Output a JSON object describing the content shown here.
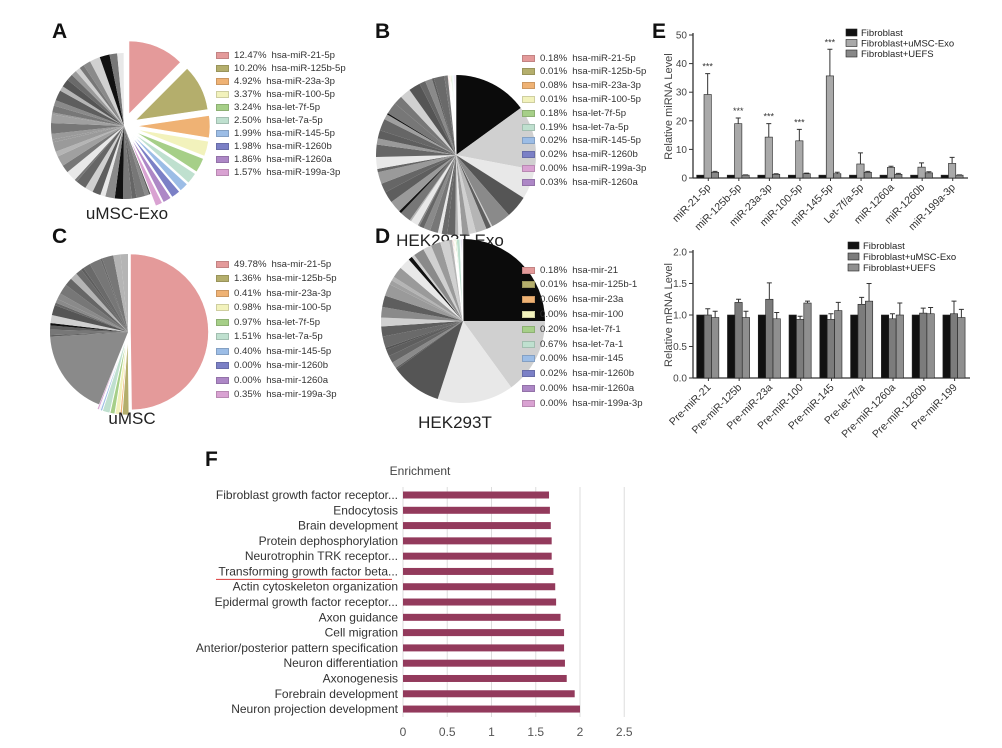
{
  "panel_letters": [
    "A",
    "B",
    "C",
    "D",
    "E",
    "F"
  ],
  "chart_data": [
    {
      "id": "A",
      "type": "pie",
      "title": "uMSC-Exo",
      "labeled_slices": [
        {
          "pct_label": "12.47%",
          "name": "hsa-miR-21-5p",
          "value": 12.47,
          "color": "#e49a9a"
        },
        {
          "pct_label": "10.20%",
          "name": "hsa-miR-125b-5p",
          "value": 10.2,
          "color": "#b4ae6c"
        },
        {
          "pct_label": "4.92%",
          "name": "hsa-miR-23a-3p",
          "value": 4.92,
          "color": "#efb274"
        },
        {
          "pct_label": "3.37%",
          "name": "hsa-miR-100-5p",
          "value": 3.37,
          "color": "#f2f2bc"
        },
        {
          "pct_label": "3.24%",
          "name": "hsa-let-7f-5p",
          "value": 3.24,
          "color": "#a6cf88"
        },
        {
          "pct_label": "2.50%",
          "name": "hsa-let-7a-5p",
          "value": 2.5,
          "color": "#bfe0cf"
        },
        {
          "pct_label": "1.99%",
          "name": "hsa-miR-145-5p",
          "value": 1.99,
          "color": "#9cbde6"
        },
        {
          "pct_label": "1.98%",
          "name": "hsa-miR-1260b",
          "value": 1.98,
          "color": "#7b80c6"
        },
        {
          "pct_label": "1.86%",
          "name": "hsa-miR-1260a",
          "value": 1.86,
          "color": "#ad87c6"
        },
        {
          "pct_label": "1.57%",
          "name": "hsa-miR-199a-3p",
          "value": 1.57,
          "color": "#d9a2d2"
        }
      ],
      "unlabeled_major_slices_pct": []
    },
    {
      "id": "B",
      "type": "pie",
      "title": "HEK293T-Exo",
      "labeled_slices": [
        {
          "pct_label": "0.18%",
          "name": "hsa-miR-21-5p",
          "value": 0.18,
          "color": "#e49a9a"
        },
        {
          "pct_label": "0.01%",
          "name": "hsa-miR-125b-5p",
          "value": 0.01,
          "color": "#b4ae6c"
        },
        {
          "pct_label": "0.08%",
          "name": "hsa-miR-23a-3p",
          "value": 0.08,
          "color": "#efb274"
        },
        {
          "pct_label": "0.01%",
          "name": "hsa-miR-100-5p",
          "value": 0.01,
          "color": "#f2f2bc"
        },
        {
          "pct_label": "0.18%",
          "name": "hsa-let-7f-5p",
          "value": 0.18,
          "color": "#a6cf88"
        },
        {
          "pct_label": "0.19%",
          "name": "hsa-let-7a-5p",
          "value": 0.19,
          "color": "#bfe0cf"
        },
        {
          "pct_label": "0.02%",
          "name": "hsa-miR-145-5p",
          "value": 0.02,
          "color": "#9cbde6"
        },
        {
          "pct_label": "0.02%",
          "name": "hsa-miR-1260b",
          "value": 0.02,
          "color": "#7b80c6"
        },
        {
          "pct_label": "0.00%",
          "name": "hsa-miR-199a-3p",
          "value": 0.0,
          "color": "#d9a2d2"
        },
        {
          "pct_label": "0.03%",
          "name": "hsa-miR-1260a",
          "value": 0.03,
          "color": "#ad87c6"
        }
      ],
      "unlabeled_major_slices_pct": [
        15,
        13,
        6,
        4.5,
        4
      ]
    },
    {
      "id": "C",
      "type": "pie",
      "title": "uMSC",
      "labeled_slices": [
        {
          "pct_label": "49.78%",
          "name": "hsa-mir-21-5p",
          "value": 49.78,
          "color": "#e49a9a"
        },
        {
          "pct_label": "1.36%",
          "name": "hsa-mir-125b-5p",
          "value": 1.36,
          "color": "#b4ae6c"
        },
        {
          "pct_label": "0.41%",
          "name": "hsa-mir-23a-3p",
          "value": 0.41,
          "color": "#efb274"
        },
        {
          "pct_label": "0.98%",
          "name": "hsa-mir-100-5p",
          "value": 0.98,
          "color": "#f2f2bc"
        },
        {
          "pct_label": "0.97%",
          "name": "hsa-let-7f-5p",
          "value": 0.97,
          "color": "#a6cf88"
        },
        {
          "pct_label": "1.51%",
          "name": "hsa-let-7a-5p",
          "value": 1.51,
          "color": "#bfe0cf"
        },
        {
          "pct_label": "0.40%",
          "name": "hsa-mir-145-5p",
          "value": 0.4,
          "color": "#9cbde6"
        },
        {
          "pct_label": "0.00%",
          "name": "hsa-mir-1260b",
          "value": 0.0,
          "color": "#7b80c6"
        },
        {
          "pct_label": "0.00%",
          "name": "hsa-mir-1260a",
          "value": 0.0,
          "color": "#ad87c6"
        },
        {
          "pct_label": "0.35%",
          "name": "hsa-mir-199a-3p",
          "value": 0.35,
          "color": "#d9a2d2"
        }
      ],
      "unlabeled_major_slices_pct": [
        18
      ]
    },
    {
      "id": "D",
      "type": "pie",
      "title": "HEK293T",
      "labeled_slices": [
        {
          "pct_label": "0.18%",
          "name": "hsa-mir-21",
          "value": 0.18,
          "color": "#e49a9a"
        },
        {
          "pct_label": "0.01%",
          "name": "hsa-mir-125b-1",
          "value": 0.01,
          "color": "#b4ae6c"
        },
        {
          "pct_label": "0.06%",
          "name": "hsa-mir-23a",
          "value": 0.06,
          "color": "#efb274"
        },
        {
          "pct_label": "0.00%",
          "name": "hsa-mir-100",
          "value": 0.0,
          "color": "#f2f2bc"
        },
        {
          "pct_label": "0.20%",
          "name": "hsa-let-7f-1",
          "value": 0.2,
          "color": "#a6cf88"
        },
        {
          "pct_label": "0.67%",
          "name": "hsa-let-7a-1",
          "value": 0.67,
          "color": "#bfe0cf"
        },
        {
          "pct_label": "0.00%",
          "name": "hsa-mir-145",
          "value": 0.0,
          "color": "#9cbde6"
        },
        {
          "pct_label": "0.02%",
          "name": "hsa-mir-1260b",
          "value": 0.02,
          "color": "#7b80c6"
        },
        {
          "pct_label": "0.00%",
          "name": "hsa-mir-1260a",
          "value": 0.0,
          "color": "#ad87c6"
        },
        {
          "pct_label": "0.00%",
          "name": "hsa-mir-199a-3p",
          "value": 0.0,
          "color": "#d9a2d2"
        }
      ],
      "unlabeled_major_slices_pct": [
        25,
        15,
        15,
        10
      ]
    },
    {
      "id": "E1",
      "type": "bar",
      "ylabel": "Relative miRNA Level",
      "ylim": [
        0,
        50
      ],
      "yticks": [
        "0",
        "10",
        "20",
        "30",
        "40",
        "50"
      ],
      "categories": [
        "miR-21-5p",
        "miR-125b-5p",
        "miR-23a-3p",
        "miR-100-5p",
        "miR-145-5p",
        "Let-7f/a-5p",
        "miR-1260a",
        "miR-1260b",
        "miR-199a-3p"
      ],
      "series": [
        {
          "name": "Fibroblast",
          "color": "#111111",
          "values": [
            1,
            1,
            1,
            1,
            1,
            1,
            1,
            1,
            1
          ],
          "err_top": [
            1,
            1,
            1,
            1,
            1,
            1,
            1,
            1,
            1
          ]
        },
        {
          "name": "Fibroblast+uMSC-Exo",
          "color": "#a9a9a9",
          "values": [
            29.2,
            19.0,
            14.3,
            13.0,
            35.7,
            4.9,
            3.7,
            3.8,
            5.1
          ],
          "err_top": [
            36.5,
            21.0,
            19.0,
            17.0,
            45.0,
            8.8,
            4.1,
            5.3,
            7.2
          ]
        },
        {
          "name": "Fibroblast+UEFS",
          "color": "#888888",
          "values": [
            2.0,
            1.0,
            1.3,
            1.5,
            1.5,
            2.0,
            1.3,
            1.8,
            1.0
          ],
          "err_top": [
            2.3,
            1.1,
            1.5,
            1.7,
            2.0,
            2.3,
            1.6,
            2.2,
            1.1
          ]
        }
      ],
      "annotations": [
        "***",
        "***",
        "***",
        "***",
        "***",
        "",
        "",
        "",
        ""
      ],
      "legend_position": "top-right"
    },
    {
      "id": "E2",
      "type": "bar",
      "ylabel": "Relative mRNA Level",
      "ylim": [
        0,
        2
      ],
      "yticks": [
        "0.0",
        "0.5",
        "1.0",
        "1.5",
        "2.0"
      ],
      "categories": [
        "Pre-miR-21",
        "Pre-miR-125b",
        "Pre-miR-23a",
        "Pre-miR-100",
        "Pre-miR-145",
        "Pre-let-7f/a",
        "Pre-miR-1260a",
        "Pre-miR-1260b",
        "Pre-miR-199"
      ],
      "series": [
        {
          "name": "Fibroblast",
          "color": "#111111",
          "values": [
            1,
            1,
            1,
            1,
            1,
            1,
            1,
            1,
            1
          ],
          "err_top": [
            1,
            1,
            1,
            1,
            1,
            1,
            1,
            1,
            1
          ]
        },
        {
          "name": "Fibroblast+uMSC-Exo",
          "color": "#7c7c7c",
          "values": [
            1.0,
            1.2,
            1.25,
            0.93,
            0.93,
            1.17,
            0.94,
            1.03,
            1.02
          ],
          "err_top": [
            1.1,
            1.25,
            1.51,
            0.98,
            1.02,
            1.28,
            1.02,
            1.11,
            1.22
          ]
        },
        {
          "name": "Fibroblast+UEFS",
          "color": "#8f8f8f",
          "values": [
            0.96,
            0.96,
            0.94,
            1.19,
            1.07,
            1.22,
            1.0,
            1.02,
            0.96
          ],
          "err_top": [
            1.06,
            1.06,
            1.04,
            1.22,
            1.2,
            1.5,
            1.19,
            1.12,
            1.09
          ]
        }
      ],
      "legend_position": "top-right"
    },
    {
      "id": "F",
      "type": "bar",
      "orientation": "horizontal",
      "title": "Enrichment",
      "xlim": [
        0,
        2.5
      ],
      "xticks": [
        "0",
        "0.5",
        "1",
        "1.5",
        "2",
        "2.5"
      ],
      "bar_color": "#933a5c",
      "grid": true,
      "categories": [
        "Fibroblast growth factor receptor...",
        "Endocytosis",
        "Brain development",
        "Protein dephosphorylation",
        "Neurotrophin TRK receptor...",
        "Transforming growth factor beta...",
        "Actin cytoskeleton organization",
        "Epidermal growth factor receptor...",
        "Axon guidance",
        "Cell migration",
        "Anterior/posterior pattern specification",
        "Neuron differentiation",
        "Axonogenesis",
        "Forebrain development",
        "Neuron projection development"
      ],
      "values": [
        1.65,
        1.66,
        1.67,
        1.68,
        1.68,
        1.7,
        1.72,
        1.73,
        1.78,
        1.82,
        1.82,
        1.83,
        1.85,
        1.94,
        2.0
      ],
      "highlighted_category": "Transforming growth factor beta...",
      "highlight_color": "#e05050"
    }
  ]
}
